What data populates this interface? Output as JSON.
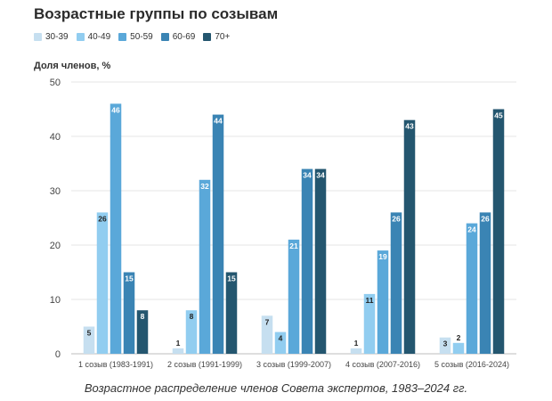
{
  "title": "Возрастные группы по созывам",
  "caption": "Возрастное распределение членов Совета экспертов, 1983–2024 гг.",
  "chart_data": {
    "type": "bar",
    "title": "Возрастные группы по созывам",
    "xlabel": "",
    "ylabel": "Доля членов, %",
    "ylim": [
      0,
      50
    ],
    "yticks": [
      0,
      10,
      20,
      30,
      40,
      50
    ],
    "grid": true,
    "legend_position": "top-left",
    "categories": [
      "1 созыв (1983-1991)",
      "2 созыв (1991-1999)",
      "3 созыв (1999-2007)",
      "4 созыв (2007-2016)",
      "5 созыв (2016-2024)"
    ],
    "series": [
      {
        "name": "30-39",
        "color": "#c6dff0",
        "values": [
          5,
          1,
          7,
          1,
          3
        ]
      },
      {
        "name": "40-49",
        "color": "#91cdf0",
        "values": [
          26,
          8,
          4,
          11,
          2
        ]
      },
      {
        "name": "50-59",
        "color": "#5aa8d9",
        "values": [
          46,
          32,
          21,
          19,
          24
        ]
      },
      {
        "name": "60-69",
        "color": "#3a84b4",
        "values": [
          15,
          44,
          34,
          26,
          26
        ]
      },
      {
        "name": "70+",
        "color": "#24566f",
        "values": [
          8,
          15,
          34,
          43,
          45
        ]
      }
    ]
  }
}
